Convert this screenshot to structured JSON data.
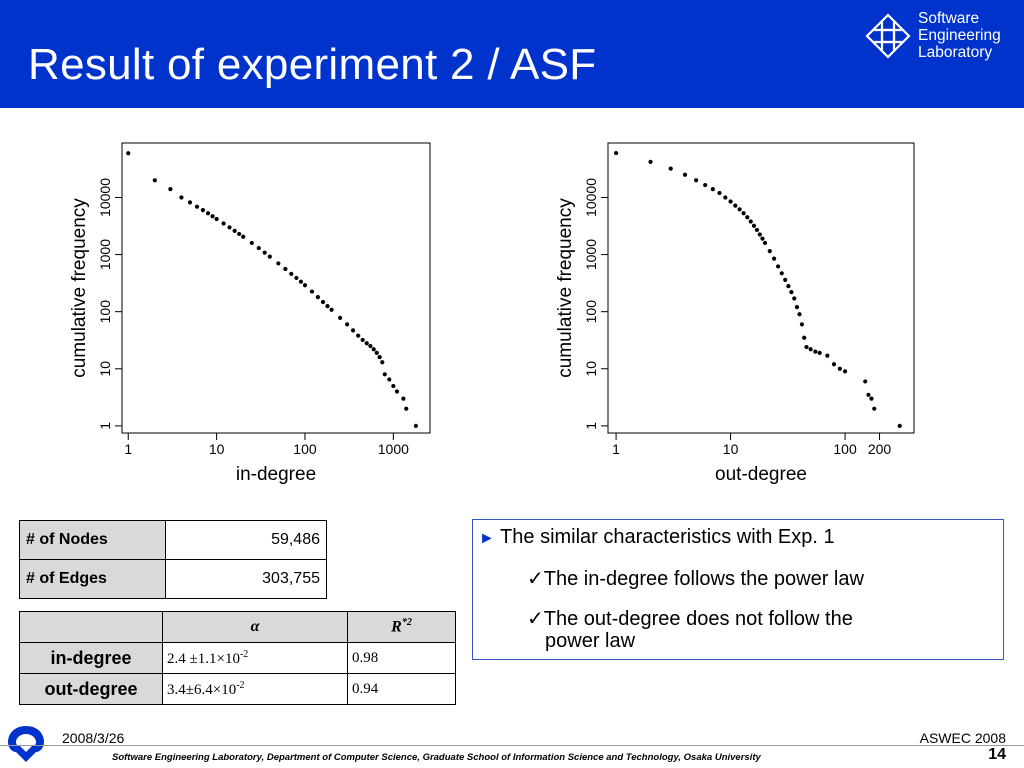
{
  "slide": {
    "title": "Result of experiment 2 / ASF",
    "logo_lines": [
      "Software",
      "Engineering",
      "Laboratory"
    ],
    "date": "2008/3/26",
    "conference": "ASWEC 2008",
    "page_number": "14",
    "organization": "Software Engineering Laboratory,  Department of Computer Science,  Graduate School of Information Science and Technology,  Osaka University",
    "colors": {
      "header": "#0033cc",
      "bullet_arrow": "#0033cc",
      "box_border": "#3355cc"
    }
  },
  "chart_data": [
    {
      "type": "scatter",
      "xlabel": "in-degree",
      "ylabel": "cumulative frequency",
      "x_scale": "log",
      "y_scale": "log",
      "xlim": [
        0.85,
        2600
      ],
      "ylim": [
        0.75,
        90000
      ],
      "x_ticks": [
        {
          "value": 1,
          "label": "1"
        },
        {
          "value": 10,
          "label": "10"
        },
        {
          "value": 100,
          "label": "100"
        },
        {
          "value": 1000,
          "label": "1000"
        }
      ],
      "y_ticks": [
        {
          "value": 1,
          "label": "1"
        },
        {
          "value": 10,
          "label": "10"
        },
        {
          "value": 100,
          "label": "100"
        },
        {
          "value": 1000,
          "label": "1000"
        },
        {
          "value": 10000,
          "label": "10000"
        }
      ],
      "points": [
        [
          1,
          59486
        ],
        [
          2,
          20000
        ],
        [
          3,
          14000
        ],
        [
          4,
          10000
        ],
        [
          5,
          8200
        ],
        [
          6,
          6900
        ],
        [
          7,
          6000
        ],
        [
          8,
          5300
        ],
        [
          9,
          4700
        ],
        [
          10,
          4200
        ],
        [
          12,
          3500
        ],
        [
          14,
          3000
        ],
        [
          16,
          2600
        ],
        [
          18,
          2300
        ],
        [
          20,
          2050
        ],
        [
          25,
          1600
        ],
        [
          30,
          1300
        ],
        [
          35,
          1080
        ],
        [
          40,
          920
        ],
        [
          50,
          700
        ],
        [
          60,
          560
        ],
        [
          70,
          460
        ],
        [
          80,
          390
        ],
        [
          90,
          335
        ],
        [
          100,
          290
        ],
        [
          120,
          225
        ],
        [
          140,
          180
        ],
        [
          160,
          148
        ],
        [
          180,
          125
        ],
        [
          200,
          108
        ],
        [
          250,
          78
        ],
        [
          300,
          60
        ],
        [
          350,
          47
        ],
        [
          400,
          38
        ],
        [
          450,
          32
        ],
        [
          500,
          28
        ],
        [
          550,
          25
        ],
        [
          600,
          22
        ],
        [
          650,
          19
        ],
        [
          700,
          16
        ],
        [
          750,
          13
        ],
        [
          800,
          8
        ],
        [
          900,
          6.5
        ],
        [
          1000,
          5
        ],
        [
          1100,
          4
        ],
        [
          1300,
          3
        ],
        [
          1400,
          2
        ],
        [
          1800,
          1
        ]
      ]
    },
    {
      "type": "scatter",
      "xlabel": "out-degree",
      "ylabel": "cumulative frequency",
      "x_scale": "log",
      "y_scale": "log",
      "xlim": [
        0.85,
        400
      ],
      "ylim": [
        0.75,
        90000
      ],
      "x_ticks": [
        {
          "value": 1,
          "label": "1"
        },
        {
          "value": 10,
          "label": "10"
        },
        {
          "value": 100,
          "label": "100"
        },
        {
          "value": 200,
          "label": "200"
        }
      ],
      "y_ticks": [
        {
          "value": 1,
          "label": "1"
        },
        {
          "value": 10,
          "label": "10"
        },
        {
          "value": 100,
          "label": "100"
        },
        {
          "value": 1000,
          "label": "1000"
        },
        {
          "value": 10000,
          "label": "10000"
        }
      ],
      "points": [
        [
          1,
          60000
        ],
        [
          2,
          42000
        ],
        [
          3,
          32000
        ],
        [
          4,
          25000
        ],
        [
          5,
          20000
        ],
        [
          6,
          16500
        ],
        [
          7,
          14000
        ],
        [
          8,
          12000
        ],
        [
          9,
          10000
        ],
        [
          10,
          8500
        ],
        [
          11,
          7200
        ],
        [
          12,
          6200
        ],
        [
          13,
          5300
        ],
        [
          14,
          4500
        ],
        [
          15,
          3800
        ],
        [
          16,
          3200
        ],
        [
          17,
          2700
        ],
        [
          18,
          2250
        ],
        [
          19,
          1900
        ],
        [
          20,
          1600
        ],
        [
          22,
          1150
        ],
        [
          24,
          850
        ],
        [
          26,
          620
        ],
        [
          28,
          470
        ],
        [
          30,
          360
        ],
        [
          32,
          280
        ],
        [
          34,
          220
        ],
        [
          36,
          170
        ],
        [
          38,
          120
        ],
        [
          40,
          90
        ],
        [
          42,
          60
        ],
        [
          44,
          35
        ],
        [
          46,
          24
        ],
        [
          50,
          22
        ],
        [
          55,
          20
        ],
        [
          60,
          19
        ],
        [
          70,
          17
        ],
        [
          80,
          12
        ],
        [
          90,
          10
        ],
        [
          100,
          9
        ],
        [
          150,
          6
        ],
        [
          160,
          3.5
        ],
        [
          170,
          3
        ],
        [
          180,
          2
        ],
        [
          300,
          1
        ]
      ]
    }
  ],
  "stats_table": {
    "rows": [
      {
        "label": "# of Nodes",
        "value": "59,486"
      },
      {
        "label": "# of Edges",
        "value": "303,755"
      }
    ]
  },
  "fit_table": {
    "header": {
      "alpha": "α",
      "r2": "R",
      "r2_sup": "*2"
    },
    "rows": [
      {
        "label": "in-degree",
        "alpha": "2.4 ±1.1×10",
        "alpha_exp": "-2",
        "r2": "0.98"
      },
      {
        "label": "out-degree",
        "alpha": "3.4±6.4×10",
        "alpha_exp": "-2",
        "r2": "0.94"
      }
    ]
  },
  "notes": {
    "heading": "The similar characteristics with Exp. 1",
    "points": [
      "The in-degree follows the power law",
      "The out-degree does not follow the",
      "power law"
    ]
  }
}
